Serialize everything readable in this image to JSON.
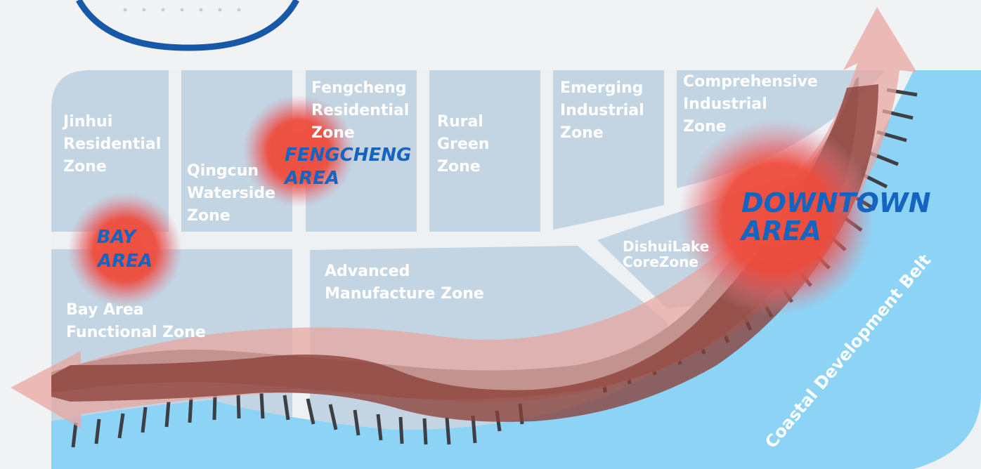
{
  "map": {
    "zones": [
      {
        "id": "jinhui",
        "lines": [
          "Jinhui",
          "Residential",
          "Zone"
        ]
      },
      {
        "id": "qingcun",
        "lines": [
          "Qingcun",
          "Waterside",
          "Zone"
        ]
      },
      {
        "id": "fengcheng-res",
        "lines": [
          "Fengcheng",
          "Residential",
          "Zone"
        ]
      },
      {
        "id": "rural",
        "lines": [
          "Rural",
          "Green",
          "Zone"
        ]
      },
      {
        "id": "emerging",
        "lines": [
          "Emerging",
          "Industrial",
          "Zone"
        ]
      },
      {
        "id": "comprehensive",
        "lines": [
          "Comprehensive",
          "Industrial",
          "Zone"
        ]
      },
      {
        "id": "bay-functional",
        "lines": [
          "Bay Area",
          "Functional Zone"
        ]
      },
      {
        "id": "advanced",
        "lines": [
          "Advanced",
          "Manufacture Zone"
        ]
      },
      {
        "id": "dishui",
        "lines": [
          "DishuiLake",
          "CoreZone"
        ]
      }
    ],
    "areas": [
      {
        "id": "bay",
        "lines": [
          "BAY",
          "AREA"
        ]
      },
      {
        "id": "fengcheng",
        "lines": [
          "FENGCHENG",
          "AREA"
        ]
      },
      {
        "id": "downtown",
        "lines": [
          "DOWNTOWN",
          "AREA"
        ]
      }
    ],
    "belt_label": "Coastal Development Belt",
    "colors": {
      "background": "#f1f2f4",
      "zone_fill": "#c3d4e2",
      "sea": "#8dd3f5",
      "road": "#eef1f4",
      "hotspot": "#ef4a3a",
      "area_text": "#1565c0",
      "arrow_main": "#8a4038",
      "arrow_light": "#e8a7a2",
      "shadow": "#55585c",
      "compass_ring": "#1759a8"
    }
  }
}
